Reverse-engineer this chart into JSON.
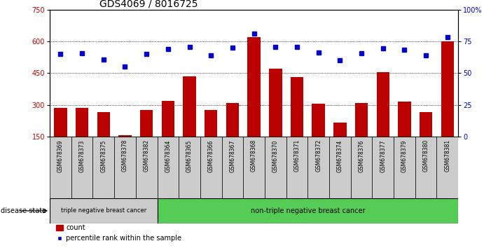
{
  "title": "GDS4069 / 8016725",
  "samples": [
    "GSM678369",
    "GSM678373",
    "GSM678375",
    "GSM678378",
    "GSM678382",
    "GSM678364",
    "GSM678365",
    "GSM678366",
    "GSM678367",
    "GSM678368",
    "GSM678370",
    "GSM678371",
    "GSM678372",
    "GSM678374",
    "GSM678376",
    "GSM678377",
    "GSM678379",
    "GSM678380",
    "GSM678381"
  ],
  "counts": [
    285,
    285,
    265,
    155,
    275,
    320,
    435,
    275,
    310,
    620,
    470,
    430,
    305,
    215,
    310,
    455,
    315,
    265,
    600
  ],
  "percentile_raw": [
    540,
    545,
    515,
    480,
    540,
    565,
    575,
    535,
    570,
    637,
    575,
    573,
    548,
    510,
    545,
    568,
    560,
    535,
    620
  ],
  "group1_count": 5,
  "group1_label": "triple negative breast cancer",
  "group2_label": "non-triple negative breast cancer",
  "bar_color": "#bb0000",
  "dot_color": "#0000cc",
  "ylim_left": [
    150,
    750
  ],
  "ylim_right": [
    0,
    100
  ],
  "yticks_left": [
    150,
    300,
    450,
    600,
    750
  ],
  "yticks_right": [
    0,
    25,
    50,
    75,
    100
  ],
  "group1_bg": "#cccccc",
  "group2_bg": "#55cc55",
  "title_fontsize": 10,
  "tick_fontsize": 7,
  "sample_fontsize": 5.5
}
